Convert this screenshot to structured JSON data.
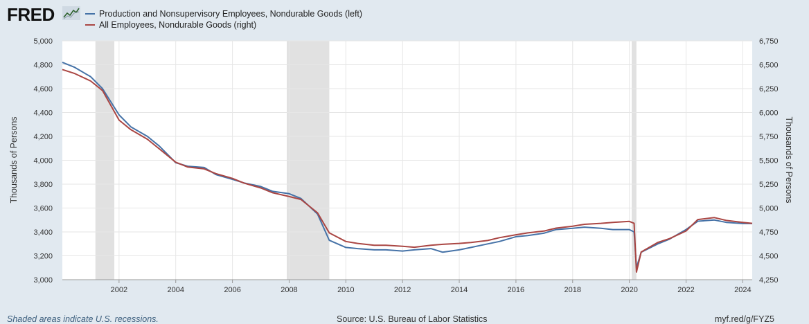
{
  "header": {
    "logo_text": "FRED",
    "logo_icon": "trend-chart-icon"
  },
  "legend": [
    {
      "label": "Production and Nonsupervisory Employees, Nondurable Goods (left)",
      "color": "#4572a7"
    },
    {
      "label": "All Employees, Nondurable Goods (right)",
      "color": "#aa4643"
    }
  ],
  "footer": {
    "recession_note": "Shaded areas indicate U.S. recessions.",
    "source": "Source: U.S. Bureau of Labor Statistics",
    "link": "myf.red/g/FYZ5"
  },
  "chart_data": {
    "type": "line",
    "ylabel_left": "Thousands of Persons",
    "ylabel_right": "Thousands of Persons",
    "ylim_left": [
      3000,
      5000
    ],
    "ylim_right": [
      4250,
      6750
    ],
    "yticks_left": [
      "3,000",
      "3,200",
      "3,400",
      "3,600",
      "3,800",
      "4,000",
      "4,200",
      "4,400",
      "4,600",
      "4,800",
      "5,000"
    ],
    "yticks_right": [
      "4,250",
      "4,500",
      "4,750",
      "5,000",
      "5,250",
      "5,500",
      "5,750",
      "6,000",
      "6,250",
      "6,500",
      "6,750"
    ],
    "xticks": [
      "2002",
      "2004",
      "2006",
      "2008",
      "2010",
      "2012",
      "2014",
      "2016",
      "2018",
      "2020",
      "2022",
      "2024"
    ],
    "xlim": [
      "2000-01",
      "2024-05"
    ],
    "grid": true,
    "recessions": [
      [
        "2001-03",
        "2001-11"
      ],
      [
        "2007-12",
        "2009-06"
      ],
      [
        "2020-02",
        "2020-04"
      ]
    ],
    "series": [
      {
        "name": "Production and Nonsupervisory Employees, Nondurable Goods (left)",
        "axis": "left",
        "color": "#4572a7",
        "x": [
          "2000-01",
          "2000-06",
          "2001-01",
          "2001-06",
          "2002-01",
          "2002-06",
          "2003-01",
          "2003-06",
          "2004-01",
          "2004-06",
          "2005-01",
          "2005-06",
          "2006-01",
          "2006-06",
          "2007-01",
          "2007-06",
          "2008-01",
          "2008-06",
          "2009-01",
          "2009-06",
          "2010-01",
          "2010-06",
          "2011-01",
          "2011-06",
          "2012-01",
          "2012-06",
          "2013-01",
          "2013-06",
          "2014-01",
          "2014-06",
          "2015-01",
          "2015-06",
          "2016-01",
          "2016-06",
          "2017-01",
          "2017-06",
          "2018-01",
          "2018-06",
          "2019-01",
          "2019-06",
          "2020-01",
          "2020-03",
          "2020-04",
          "2020-06",
          "2021-01",
          "2021-06",
          "2022-01",
          "2022-06",
          "2023-01",
          "2023-06",
          "2024-01",
          "2024-05"
        ],
        "y": [
          4820,
          4780,
          4700,
          4600,
          4380,
          4280,
          4200,
          4120,
          3980,
          3950,
          3940,
          3880,
          3840,
          3810,
          3780,
          3740,
          3720,
          3680,
          3550,
          3330,
          3270,
          3260,
          3250,
          3250,
          3240,
          3250,
          3260,
          3230,
          3250,
          3270,
          3300,
          3320,
          3360,
          3370,
          3390,
          3420,
          3430,
          3440,
          3430,
          3420,
          3420,
          3400,
          3100,
          3230,
          3300,
          3340,
          3420,
          3490,
          3500,
          3480,
          3470,
          3470
        ]
      },
      {
        "name": "All Employees, Nondurable Goods (right)",
        "axis": "right",
        "color": "#aa4643",
        "x": [
          "2000-01",
          "2000-06",
          "2001-01",
          "2001-06",
          "2002-01",
          "2002-06",
          "2003-01",
          "2003-06",
          "2004-01",
          "2004-06",
          "2005-01",
          "2005-06",
          "2006-01",
          "2006-06",
          "2007-01",
          "2007-06",
          "2008-01",
          "2008-06",
          "2009-01",
          "2009-06",
          "2010-01",
          "2010-06",
          "2011-01",
          "2011-06",
          "2012-01",
          "2012-06",
          "2013-01",
          "2013-06",
          "2014-01",
          "2014-06",
          "2015-01",
          "2015-06",
          "2016-01",
          "2016-06",
          "2017-01",
          "2017-06",
          "2018-01",
          "2018-06",
          "2019-01",
          "2019-06",
          "2020-01",
          "2020-03",
          "2020-04",
          "2020-06",
          "2021-01",
          "2021-06",
          "2022-01",
          "2022-06",
          "2023-01",
          "2023-06",
          "2024-01",
          "2024-05"
        ],
        "y": [
          6450,
          6410,
          6330,
          6230,
          5920,
          5820,
          5720,
          5620,
          5480,
          5430,
          5410,
          5360,
          5310,
          5260,
          5210,
          5160,
          5120,
          5090,
          4950,
          4740,
          4650,
          4630,
          4610,
          4610,
          4600,
          4590,
          4610,
          4620,
          4630,
          4640,
          4660,
          4690,
          4720,
          4740,
          4760,
          4790,
          4810,
          4830,
          4840,
          4850,
          4860,
          4840,
          4330,
          4540,
          4640,
          4680,
          4760,
          4880,
          4900,
          4870,
          4850,
          4840
        ]
      }
    ]
  }
}
